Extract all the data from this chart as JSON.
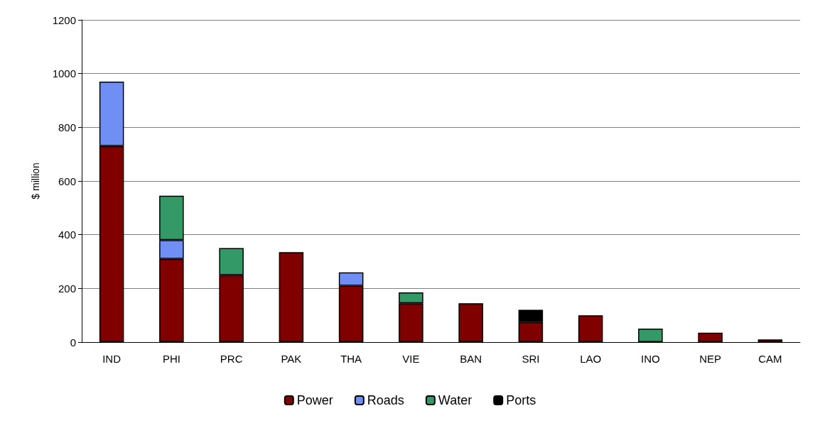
{
  "chart_data": {
    "type": "bar",
    "ylabel": "$ million",
    "stacked": true,
    "categories": [
      "IND",
      "PHI",
      "PRC",
      "PAK",
      "THA",
      "VIE",
      "BAN",
      "SRI",
      "LAO",
      "INO",
      "NEP",
      "CAM"
    ],
    "series": [
      {
        "name": "Power",
        "color": "#800000",
        "values": [
          730,
          310,
          250,
          335,
          210,
          145,
          145,
          75,
          100,
          null,
          35,
          10
        ]
      },
      {
        "name": "Roads",
        "color": "#6f8ff5",
        "values": [
          240,
          70,
          null,
          null,
          50,
          null,
          null,
          null,
          null,
          null,
          null,
          null
        ]
      },
      {
        "name": "Water",
        "color": "#339966",
        "values": [
          null,
          165,
          100,
          null,
          null,
          40,
          null,
          null,
          null,
          50,
          null,
          null
        ]
      },
      {
        "name": "Ports",
        "color": "#000000",
        "values": [
          null,
          null,
          null,
          null,
          null,
          null,
          null,
          45,
          null,
          null,
          null,
          null
        ]
      }
    ],
    "ylim": [
      0,
      1200
    ],
    "yticks": [
      0,
      200,
      400,
      600,
      800,
      1000,
      1200
    ],
    "grid": "y",
    "legend": "bottom"
  }
}
